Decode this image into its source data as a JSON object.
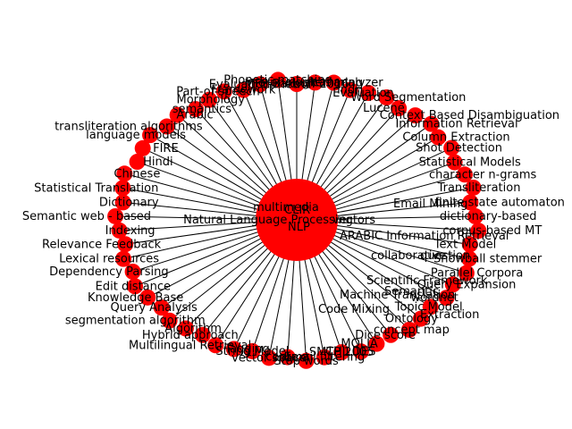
{
  "colors": {
    "node": "#ff0000",
    "edge": "#000000",
    "background": "#ffffff",
    "text": "#000000"
  },
  "hub": {
    "labels": [
      "CLIR",
      "NLP"
    ]
  },
  "inner_labels": [
    "multimedia",
    "Natural Language Processing",
    "vectors",
    "Email Mining",
    "ARABIC Information Retrieval",
    "Scientific Framework",
    "Code Mixing",
    "Machine Translation",
    "Extraction",
    "collaborative",
    "question",
    "Semantic"
  ],
  "ring_labels": [
    "MFS-Bakeoff 2016",
    "morphological analyzer",
    "stemming",
    "Indri",
    "Evaluation",
    "Word Segmentation",
    "Lucene",
    "Context Based Disambiguation",
    "Information Retrieval",
    "Column Extraction",
    "Shot Detection",
    "Statistical Models",
    "character n-grams",
    "Transliteration",
    "finite state automaton",
    "dictionary-based",
    "corpus-based MT",
    "Text Model",
    "Snowball stemmer",
    "Parallel Corpora",
    "Query Expansion",
    "wordnet",
    "Topic Model",
    "Ontology",
    "concept map",
    "Dice score",
    "MOLIA",
    "CHILDES",
    "SMTP 2005",
    "Email filtering",
    "Stop words",
    "context",
    "vector space",
    "String Model",
    "Tagging",
    "Multilingual Retrieval",
    "Hybrid approach",
    "Algorithm",
    "segmentation algorithm",
    "Query Analysis",
    "Knowledge Base",
    "Edit distance",
    "Dependency Parsing",
    "Lexical resources",
    "Relevance Feedback",
    "Indexing",
    "Semantic web - based",
    "Dictionary",
    "Statistical Translation",
    "Chinese",
    "Hindi",
    "FIRE",
    "language models",
    "transliteration algorithms",
    "Arabic",
    "semantics",
    "Morphology",
    "Part-of-speech",
    "Framework",
    "Evaluation metric",
    "Phonetic matching"
  ]
}
